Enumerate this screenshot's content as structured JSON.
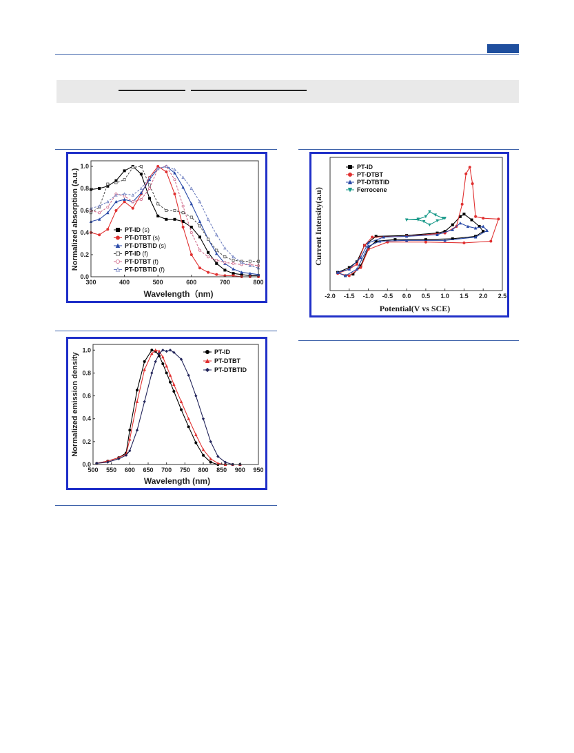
{
  "chart_data": [
    {
      "type": "line",
      "xlabel": "Wavelength（nm)",
      "ylabel": "Normalized absorption (a.u.)",
      "xlim": [
        300,
        800
      ],
      "ylim": [
        0,
        1.05
      ],
      "xticks": [
        "300",
        "400",
        "500",
        "600",
        "700",
        "800"
      ],
      "yticks": [
        "0.0",
        "0.2",
        "0.4",
        "0.6",
        "0.8",
        "1.0"
      ],
      "legend_position": "bottom-left",
      "x": [
        300,
        325,
        350,
        375,
        400,
        425,
        450,
        475,
        500,
        525,
        550,
        575,
        600,
        625,
        650,
        675,
        700,
        725,
        750,
        775,
        800
      ],
      "series": [
        {
          "name": "PT-ID",
          "suffix": "(s)",
          "color": "#000000",
          "marker": "filled-square",
          "dashed": false,
          "values": [
            0.79,
            0.8,
            0.82,
            0.87,
            0.96,
            1.0,
            0.93,
            0.71,
            0.55,
            0.52,
            0.52,
            0.5,
            0.45,
            0.36,
            0.22,
            0.12,
            0.06,
            0.03,
            0.02,
            0.01,
            0.01
          ]
        },
        {
          "name": "PT-DTBT",
          "suffix": "(s)",
          "color": "#e03030",
          "marker": "filled-circle",
          "dashed": false,
          "values": [
            0.4,
            0.38,
            0.43,
            0.6,
            0.68,
            0.62,
            0.75,
            0.9,
            1.0,
            0.95,
            0.75,
            0.45,
            0.2,
            0.08,
            0.04,
            0.02,
            0.01,
            0.01,
            0.0,
            0.0,
            0.0
          ]
        },
        {
          "name": "PT-DTBTID",
          "suffix": "(s)",
          "color": "#2a4aa8",
          "marker": "filled-triangle",
          "dashed": false,
          "values": [
            0.5,
            0.52,
            0.58,
            0.68,
            0.7,
            0.68,
            0.76,
            0.88,
            0.98,
            1.0,
            0.94,
            0.81,
            0.66,
            0.5,
            0.34,
            0.21,
            0.12,
            0.07,
            0.04,
            0.03,
            0.02
          ]
        },
        {
          "name": "PT-ID",
          "suffix": "(f)",
          "color": "#555555",
          "marker": "open-square",
          "dashed": true,
          "values": [
            0.58,
            0.63,
            0.84,
            0.85,
            0.88,
            0.99,
            1.0,
            0.83,
            0.66,
            0.6,
            0.6,
            0.58,
            0.54,
            0.46,
            0.34,
            0.24,
            0.18,
            0.15,
            0.14,
            0.14,
            0.14
          ]
        },
        {
          "name": "PT-DTBT",
          "suffix": "(f)",
          "color": "#d06a8a",
          "marker": "open-circle",
          "dashed": true,
          "values": [
            0.6,
            0.58,
            0.63,
            0.75,
            0.73,
            0.68,
            0.7,
            0.8,
            0.98,
            1.0,
            0.88,
            0.64,
            0.4,
            0.24,
            0.18,
            0.15,
            0.13,
            0.12,
            0.11,
            0.11,
            0.1
          ]
        },
        {
          "name": "PT-DTBTID",
          "suffix": "(f)",
          "color": "#7080c0",
          "marker": "open-triangle",
          "dashed": true,
          "values": [
            0.62,
            0.64,
            0.68,
            0.74,
            0.75,
            0.74,
            0.8,
            0.9,
            0.98,
            1.0,
            0.97,
            0.9,
            0.8,
            0.68,
            0.52,
            0.38,
            0.26,
            0.18,
            0.13,
            0.1,
            0.08
          ]
        }
      ]
    },
    {
      "type": "line",
      "xlabel": "Potential(V vs SCE)",
      "ylabel": "Current Intensity(a.u)",
      "xlim": [
        -2.0,
        2.5
      ],
      "xticks": [
        "-2.0",
        "-1.5",
        "-1.0",
        "-0.5",
        "0.0",
        "0.5",
        "1.0",
        "1.5",
        "2.0",
        "2.5"
      ],
      "legend_position": "top-left",
      "series": [
        {
          "name": "PT-ID",
          "color": "#000000",
          "marker": "filled-square",
          "x": [
            -1.8,
            -1.5,
            -1.3,
            -1.1,
            -0.8,
            0.0,
            0.8,
            1.0,
            1.2,
            1.4,
            1.5,
            1.7,
            1.9,
            2.0,
            1.8,
            1.2,
            0.5,
            -0.3,
            -0.8,
            -1.0,
            -1.2,
            -1.4,
            -1.6,
            -1.8
          ],
          "y": [
            0.22,
            0.28,
            0.35,
            0.55,
            0.66,
            0.67,
            0.7,
            0.72,
            0.8,
            0.9,
            0.93,
            0.86,
            0.78,
            0.72,
            0.66,
            0.63,
            0.62,
            0.62,
            0.6,
            0.52,
            0.3,
            0.2,
            0.18,
            0.22
          ]
        },
        {
          "name": "PT-DTBT",
          "color": "#e03030",
          "marker": "filled-circle",
          "x": [
            -1.8,
            -1.5,
            -1.3,
            -1.1,
            -0.9,
            0.0,
            1.0,
            1.3,
            1.45,
            1.55,
            1.65,
            1.72,
            1.8,
            2.0,
            2.4,
            2.2,
            1.5,
            0.5,
            -0.5,
            -1.0,
            -1.2,
            -1.5,
            -1.8
          ],
          "y": [
            0.21,
            0.26,
            0.32,
            0.55,
            0.65,
            0.66,
            0.7,
            0.78,
            1.05,
            1.42,
            1.5,
            1.3,
            0.9,
            0.88,
            0.87,
            0.6,
            0.58,
            0.59,
            0.59,
            0.5,
            0.28,
            0.18,
            0.21
          ]
        },
        {
          "name": "PT-DTBTID",
          "color": "#2a4aa8",
          "marker": "filled-triangle",
          "x": [
            -1.8,
            -1.5,
            -1.2,
            -1.0,
            -0.6,
            0.0,
            0.8,
            1.2,
            1.4,
            1.6,
            1.8,
            2.0,
            2.1,
            1.8,
            1.0,
            0.0,
            -0.7,
            -1.0,
            -1.3,
            -1.6,
            -1.8
          ],
          "y": [
            0.22,
            0.26,
            0.4,
            0.58,
            0.65,
            0.66,
            0.68,
            0.74,
            0.82,
            0.78,
            0.76,
            0.78,
            0.73,
            0.65,
            0.61,
            0.61,
            0.6,
            0.54,
            0.26,
            0.18,
            0.22
          ]
        },
        {
          "name": "Ferrocene",
          "color": "#1a9a8a",
          "marker": "filled-down-triangle",
          "x": [
            0.0,
            0.3,
            0.5,
            0.6,
            0.75,
            0.95,
            1.0,
            0.8,
            0.6,
            0.45,
            0.3,
            0.0
          ],
          "y": [
            0.86,
            0.87,
            0.9,
            0.96,
            0.92,
            0.88,
            0.88,
            0.85,
            0.8,
            0.84,
            0.86,
            0.86
          ]
        }
      ]
    },
    {
      "type": "line",
      "xlabel": "Wavelength (nm)",
      "ylabel": "Normalized emission density",
      "xlim": [
        500,
        950
      ],
      "ylim": [
        0,
        1.05
      ],
      "xticks": [
        "500",
        "550",
        "600",
        "650",
        "700",
        "750",
        "800",
        "850",
        "900",
        "950"
      ],
      "yticks": [
        "0.0",
        "0.2",
        "0.4",
        "0.6",
        "0.8",
        "1.0"
      ],
      "legend_position": "top-right",
      "x": [
        510,
        540,
        570,
        590,
        600,
        620,
        640,
        660,
        670,
        680,
        690,
        700,
        710,
        720,
        740,
        760,
        780,
        800,
        820,
        840,
        860,
        880,
        900
      ],
      "series": [
        {
          "name": "PT-ID",
          "color": "#000000",
          "marker": "filled-circle",
          "values": [
            0.01,
            0.03,
            0.06,
            0.1,
            0.3,
            0.65,
            0.9,
            1.0,
            0.99,
            0.95,
            0.88,
            0.8,
            0.72,
            0.64,
            0.48,
            0.33,
            0.19,
            0.08,
            0.02,
            0.0,
            0.0,
            0.0,
            0.0
          ]
        },
        {
          "name": "PT-DTBT",
          "color": "#e03030",
          "marker": "filled-triangle",
          "values": [
            0.01,
            0.03,
            0.06,
            0.09,
            0.22,
            0.55,
            0.83,
            0.97,
            1.0,
            0.99,
            0.94,
            0.86,
            0.78,
            0.7,
            0.55,
            0.4,
            0.26,
            0.13,
            0.05,
            0.01,
            0.0,
            0.0,
            0.0
          ]
        },
        {
          "name": "PT-DTBTID",
          "color": "#22245a",
          "marker": "filled-diamond",
          "values": [
            0.01,
            0.02,
            0.05,
            0.08,
            0.12,
            0.3,
            0.55,
            0.8,
            0.9,
            0.97,
            1.0,
            0.99,
            1.0,
            0.98,
            0.92,
            0.78,
            0.6,
            0.4,
            0.2,
            0.07,
            0.02,
            0.0,
            0.0
          ]
        }
      ]
    }
  ]
}
